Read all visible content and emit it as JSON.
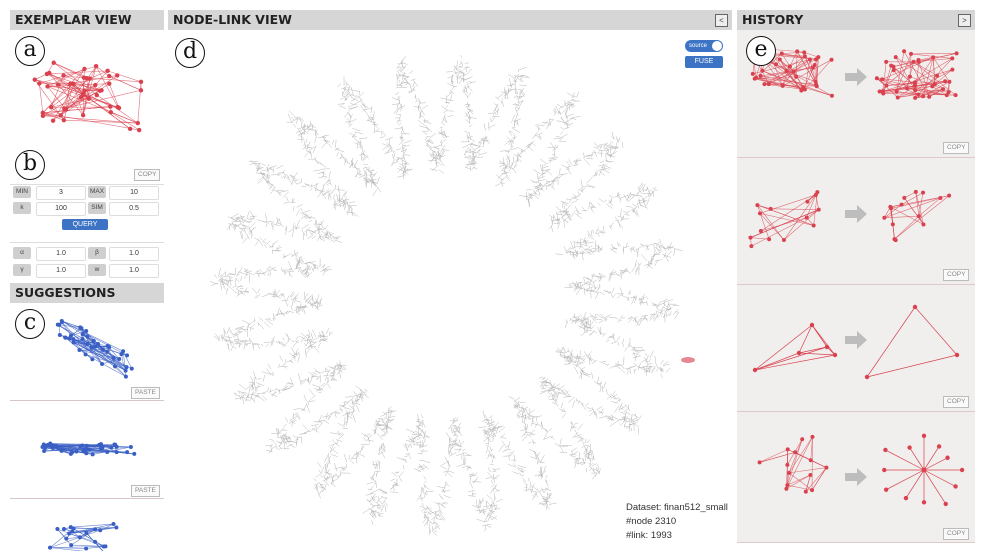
{
  "exemplar": {
    "title": "EXEMPLAR VIEW",
    "label_a": "a",
    "label_b": "b",
    "copy_label": "COPY",
    "params": [
      {
        "label": "MIN",
        "value": "3"
      },
      {
        "label": "MAX",
        "value": "10"
      },
      {
        "label": "k",
        "value": "100"
      },
      {
        "label": "SIM",
        "value": "0.5"
      }
    ],
    "query_label": "QUERY",
    "weights": [
      {
        "label": "α",
        "value": "1.0"
      },
      {
        "label": "β",
        "value": "1.0"
      },
      {
        "label": "γ",
        "value": "1.0"
      },
      {
        "label": "w",
        "value": "1.0"
      }
    ]
  },
  "suggestions": {
    "title": "SUGGESTIONS",
    "label_c": "c",
    "paste_label": "PASTE"
  },
  "nodelink": {
    "title": "NODE-LINK VIEW",
    "label_d": "d",
    "collapse_icon": "<",
    "toggle_label": "source",
    "fuse_label": "FUSE",
    "dataset": "Dataset: finan512_small",
    "nodes": "#node 2310",
    "links": "#link: 1993"
  },
  "history": {
    "title": "HISTORY",
    "label_e": "e",
    "expand_icon": ">",
    "copy_label": "COPY"
  },
  "colors": {
    "red": "#d9414f",
    "blue": "#3a5fc4",
    "gray": "#b5b5b5",
    "accent": "#3c73c4"
  }
}
